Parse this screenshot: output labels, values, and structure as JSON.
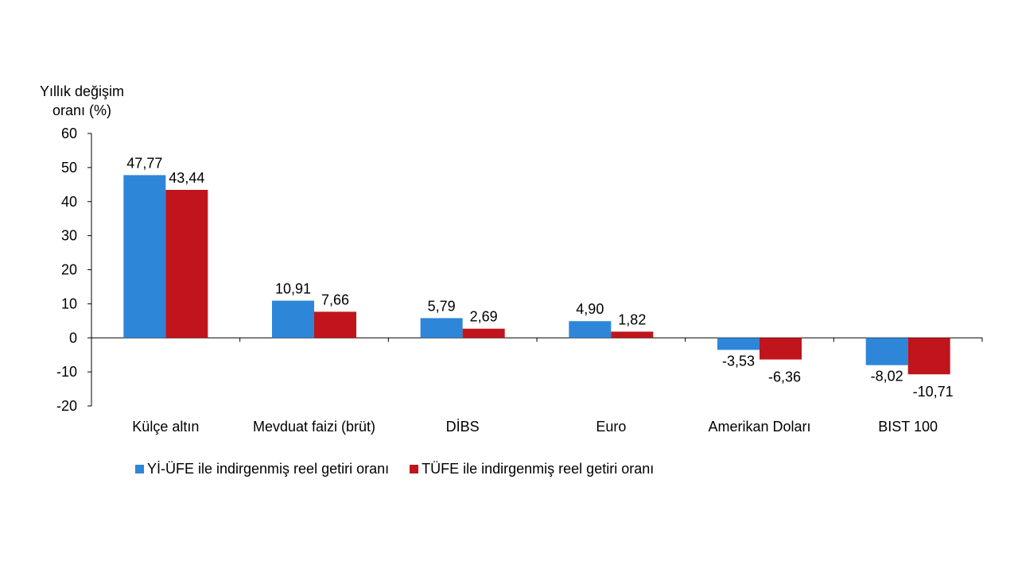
{
  "chart_data": {
    "type": "bar",
    "ylabel_line1": "Yıllık değişim",
    "ylabel_line2": "oranı (%)",
    "categories": [
      "Külçe altın",
      "Mevduat faizi (brüt)",
      "DİBS",
      "Euro",
      "Amerikan Doları",
      "BIST 100"
    ],
    "series": [
      {
        "name": "Yİ-ÜFE ile indirgenmiş reel getiri oranı",
        "color": "#2e86d8",
        "values": [
          47.77,
          10.91,
          5.79,
          4.9,
          -3.53,
          -8.02
        ],
        "labels": [
          "47,77",
          "10,91",
          "5,79",
          "4,90",
          "-3,53",
          "-8,02"
        ]
      },
      {
        "name": "TÜFE ile indirgenmiş reel getiri oranı",
        "color": "#c0151c",
        "values": [
          43.44,
          7.66,
          2.69,
          1.82,
          -6.36,
          -10.71
        ],
        "labels": [
          "43,44",
          "7,66",
          "2,69",
          "1,82",
          "-6,36",
          "-10,71"
        ]
      }
    ],
    "yticks": [
      60,
      50,
      40,
      30,
      20,
      10,
      0,
      -10,
      -20
    ],
    "ylim": [
      -20,
      60
    ],
    "grid": false,
    "legend_position": "bottom"
  }
}
